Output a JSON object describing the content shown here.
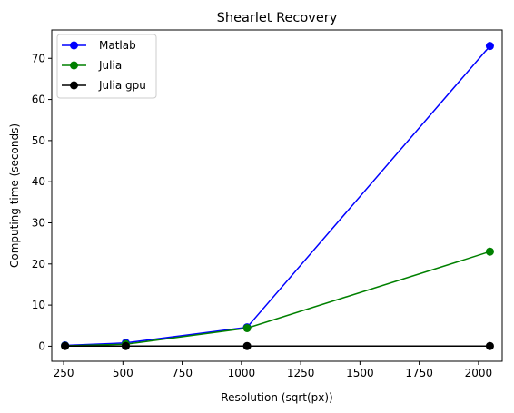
{
  "chart_data": {
    "type": "line",
    "title": "Shearlet Recovery",
    "xlabel": "Resolution (sqrt(px))",
    "ylabel": "Computing time (seconds)",
    "xlim": [
      200,
      2100
    ],
    "ylim": [
      -3.66,
      76.9
    ],
    "xticks": [
      250,
      500,
      750,
      1000,
      1250,
      1500,
      1750,
      2000
    ],
    "yticks": [
      0,
      10,
      20,
      30,
      40,
      50,
      60,
      70
    ],
    "x": [
      256,
      512,
      1024,
      2048
    ],
    "series": [
      {
        "name": "Matlab",
        "color": "#0000ff",
        "values": [
          0.2,
          0.8,
          4.6,
          73.0
        ]
      },
      {
        "name": "Julia",
        "color": "#008000",
        "values": [
          0.1,
          0.5,
          4.4,
          23.0
        ]
      },
      {
        "name": "Julia gpu",
        "color": "#000000",
        "values": [
          0.05,
          0.05,
          0.05,
          0.05
        ]
      }
    ],
    "legend_position": "top-left",
    "grid": false
  }
}
